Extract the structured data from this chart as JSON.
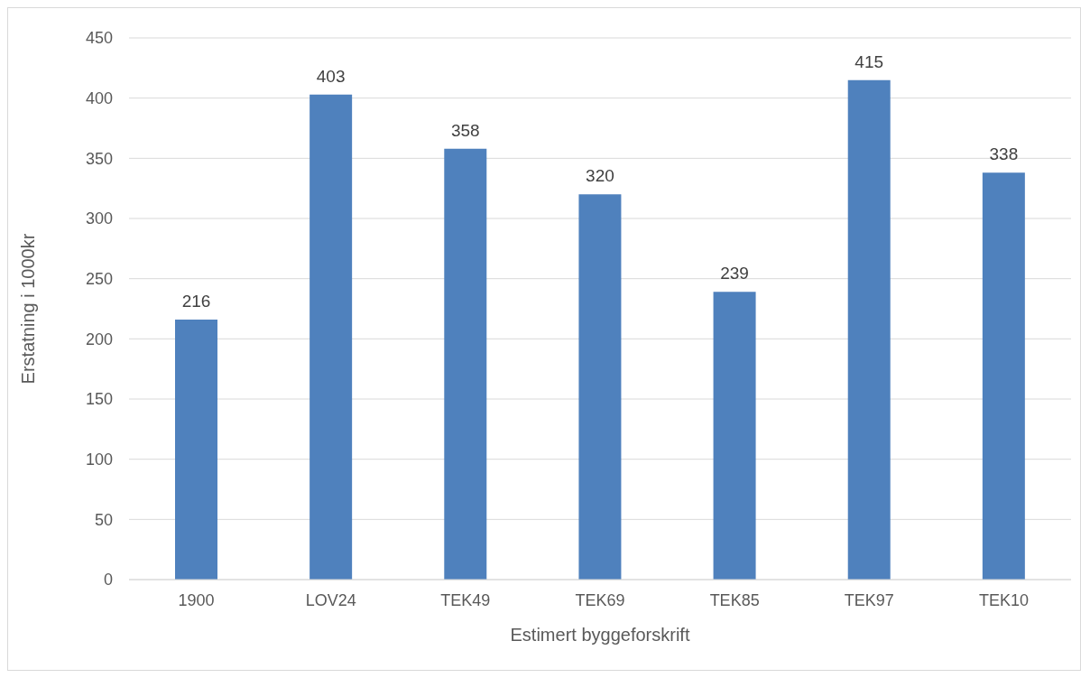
{
  "chart_data": {
    "type": "bar",
    "xlabel": "Estimert byggeforskrift",
    "ylabel": "Erstatning i 1000kr",
    "categories": [
      "1900",
      "LOV24",
      "TEK49",
      "TEK69",
      "TEK85",
      "TEK97",
      "TEK10"
    ],
    "values": [
      216,
      403,
      358,
      320,
      239,
      415,
      338
    ],
    "color": "#4f81bd",
    "ylim": [
      0,
      450
    ],
    "yticks": [
      0,
      50,
      100,
      150,
      200,
      250,
      300,
      350,
      400,
      450
    ],
    "grid": "y",
    "data_labels": true
  }
}
